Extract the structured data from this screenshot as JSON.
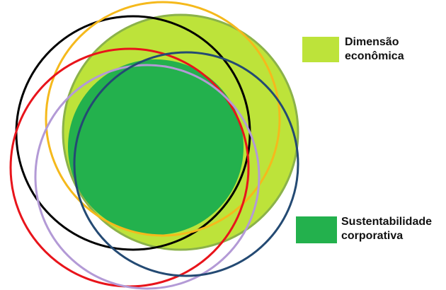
{
  "legend": {
    "economica": {
      "label": "Dimensão\neconômica",
      "color": "#bde33a"
    },
    "sustentabilidade": {
      "label": "Sustentabilidade\ncorporativa",
      "color": "#23b14d"
    }
  },
  "rings": [
    {
      "name": "outline-black-ring",
      "color": "#000000"
    },
    {
      "name": "outline-orange-ring",
      "color": "#f5b91c"
    },
    {
      "name": "outline-red-ring",
      "color": "#e8141b"
    },
    {
      "name": "outline-purple-ring",
      "color": "#b39ad6"
    },
    {
      "name": "outline-navy-ring",
      "color": "#244a73"
    }
  ]
}
